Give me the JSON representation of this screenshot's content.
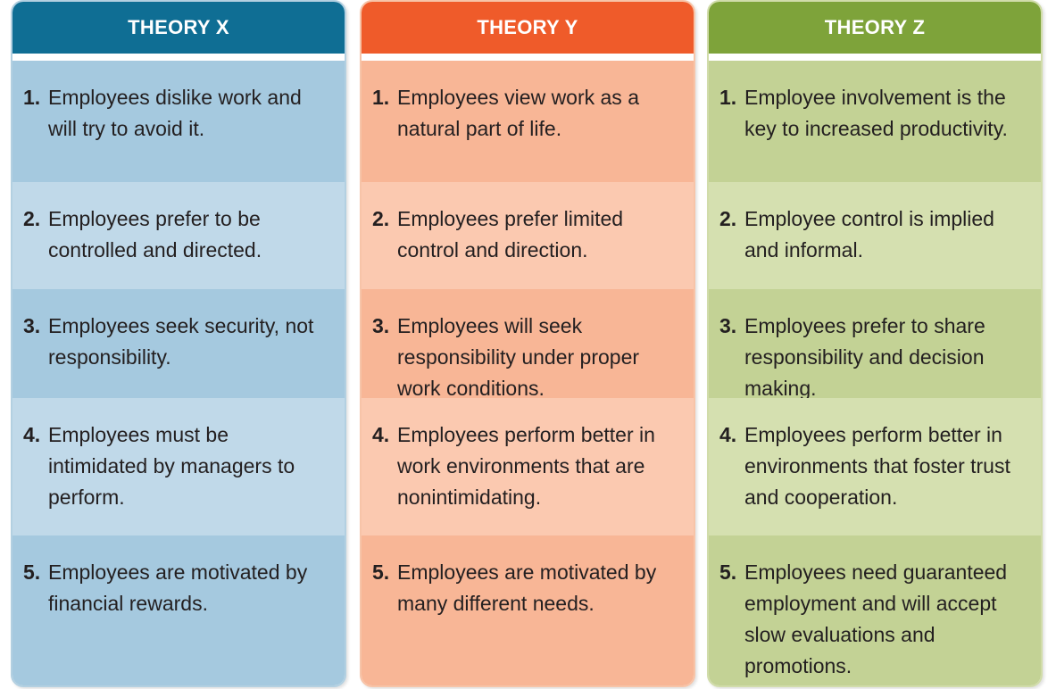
{
  "columns": [
    {
      "id": "x",
      "title": "THEORY X",
      "color": "#0f6e94",
      "items": [
        {
          "num": "1.",
          "text": "Employees dislike work and will try to avoid it."
        },
        {
          "num": "2.",
          "text": "Employees prefer to be controlled and directed."
        },
        {
          "num": "3.",
          "text": "Employees seek security, not responsibility."
        },
        {
          "num": "4.",
          "text": "Employees must be intimidated by managers to perform."
        },
        {
          "num": "5.",
          "text": "Employees are motivated by financial rewards."
        }
      ]
    },
    {
      "id": "y",
      "title": "THEORY Y",
      "color": "#ef5b2a",
      "items": [
        {
          "num": "1.",
          "text": "Employees view work as a natural part of life."
        },
        {
          "num": "2.",
          "text": "Employees prefer limited control and direction."
        },
        {
          "num": "3.",
          "text": "Employees will seek responsibility under proper work conditions."
        },
        {
          "num": "4.",
          "text": "Employees perform better in work environments that are nonintimidating."
        },
        {
          "num": "5.",
          "text": "Employees are motivated by many different needs."
        }
      ]
    },
    {
      "id": "z",
      "title": "THEORY Z",
      "color": "#7ea33a",
      "items": [
        {
          "num": "1.",
          "text": "Employee involvement is the key to increased productivity."
        },
        {
          "num": "2.",
          "text": "Employee control is implied and informal."
        },
        {
          "num": "3.",
          "text": "Employees prefer to share responsibility and decision making."
        },
        {
          "num": "4.",
          "text": "Employees perform better in environments that foster trust and cooperation."
        },
        {
          "num": "5.",
          "text": "Employees need guaranteed employment and will accept slow evaluations and promotions."
        }
      ]
    }
  ]
}
